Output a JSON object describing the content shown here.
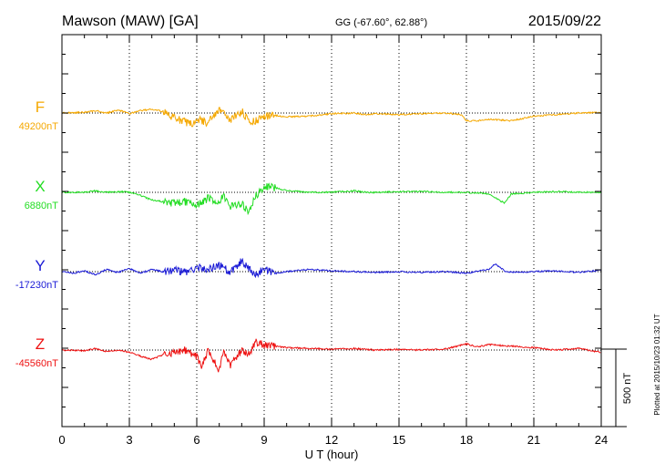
{
  "header": {
    "station": "Mawson (MAW)  [GA]",
    "coords": "GG (-67.60°,  62.88°)",
    "date": "2015/09/22"
  },
  "footer_note": "Plotted at 2015/10/23 01:32 UT",
  "scale_label": "500 nT",
  "chart_data": {
    "type": "line",
    "title": "Mawson (MAW)  [GA]",
    "xlabel": "U T (hour)",
    "xlim": [
      0,
      24
    ],
    "x_ticks": [
      "0",
      "3",
      "6",
      "9",
      "12",
      "15",
      "18",
      "21",
      "24"
    ],
    "grid": true,
    "scale_bar_nT": 500,
    "series": [
      {
        "name": "F",
        "baseline_label": "49200nT",
        "baseline": 49200,
        "color": "#f5a800",
        "x": [
          0,
          1,
          1.5,
          2,
          2.5,
          3,
          3.5,
          4,
          4.5,
          5,
          5.5,
          5.8,
          6,
          6.5,
          7,
          7.2,
          7.5,
          8,
          8.3,
          8.6,
          9,
          9.5,
          10,
          11,
          12,
          13,
          13.5,
          14,
          15,
          16,
          17,
          17.8,
          18,
          18.5,
          19,
          20,
          21,
          22,
          23,
          24
        ],
        "v": [
          49200,
          49205,
          49215,
          49200,
          49220,
          49195,
          49215,
          49225,
          49210,
          49170,
          49140,
          49130,
          49165,
          49135,
          49230,
          49195,
          49150,
          49215,
          49150,
          49145,
          49180,
          49185,
          49175,
          49180,
          49195,
          49200,
          49190,
          49195,
          49190,
          49195,
          49200,
          49190,
          49150,
          49150,
          49160,
          49150,
          49180,
          49190,
          49200,
          49205
        ]
      },
      {
        "name": "X",
        "baseline_label": "6880nT",
        "baseline": 6880,
        "color": "#22dd22",
        "x": [
          0,
          1,
          1.5,
          2,
          2.5,
          3,
          3.5,
          4,
          4.5,
          5,
          5.5,
          6,
          6.5,
          7,
          7.2,
          7.5,
          8,
          8.3,
          8.6,
          9,
          9.5,
          10,
          11,
          12,
          13,
          13.5,
          14,
          15,
          16,
          17,
          18,
          19,
          19.7,
          20,
          21,
          22,
          23,
          24
        ],
        "v": [
          6880,
          6880,
          6890,
          6880,
          6885,
          6880,
          6860,
          6830,
          6820,
          6810,
          6820,
          6800,
          6840,
          6820,
          6860,
          6790,
          6810,
          6750,
          6850,
          6920,
          6910,
          6890,
          6880,
          6880,
          6890,
          6880,
          6880,
          6885,
          6885,
          6880,
          6880,
          6870,
          6810,
          6870,
          6880,
          6885,
          6880,
          6880
        ]
      },
      {
        "name": "Y",
        "baseline_label": "-17230nT",
        "baseline": -17230,
        "color": "#1a1ad6",
        "x": [
          0,
          0.5,
          1,
          1.5,
          2,
          2.5,
          3,
          3.5,
          4,
          4.5,
          5,
          5.5,
          6,
          6.5,
          7,
          7.5,
          8,
          8.3,
          8.6,
          9,
          9.5,
          10,
          11,
          12,
          13,
          14,
          15,
          16,
          17,
          18,
          19,
          19.3,
          19.7,
          20,
          21,
          22,
          23,
          24
        ],
        "v": [
          -17230,
          -17240,
          -17225,
          -17250,
          -17215,
          -17235,
          -17210,
          -17240,
          -17215,
          -17230,
          -17220,
          -17235,
          -17200,
          -17215,
          -17190,
          -17230,
          -17160,
          -17210,
          -17260,
          -17210,
          -17240,
          -17230,
          -17215,
          -17225,
          -17230,
          -17235,
          -17230,
          -17235,
          -17230,
          -17240,
          -17215,
          -17180,
          -17225,
          -17235,
          -17230,
          -17225,
          -17235,
          -17220
        ]
      },
      {
        "name": "Z",
        "baseline_label": "-45560nT",
        "baseline": -45560,
        "color": "#ee1111",
        "x": [
          0,
          1,
          1.5,
          2,
          2.5,
          3,
          3.5,
          4,
          4.5,
          5,
          5.5,
          6,
          6.2,
          6.5,
          7,
          7.2,
          7.5,
          8,
          8.3,
          8.6,
          9,
          10,
          11,
          12,
          13,
          14,
          15,
          16,
          17,
          18,
          18.5,
          19,
          20,
          21,
          22,
          23,
          24
        ],
        "v": [
          -45560,
          -45565,
          -45550,
          -45570,
          -45560,
          -45575,
          -45600,
          -45620,
          -45590,
          -45575,
          -45560,
          -45600,
          -45660,
          -45570,
          -45690,
          -45560,
          -45660,
          -45560,
          -45590,
          -45510,
          -45525,
          -45545,
          -45550,
          -45555,
          -45550,
          -45560,
          -45555,
          -45560,
          -45555,
          -45520,
          -45540,
          -45525,
          -45535,
          -45545,
          -45560,
          -45550,
          -45575
        ]
      }
    ]
  }
}
